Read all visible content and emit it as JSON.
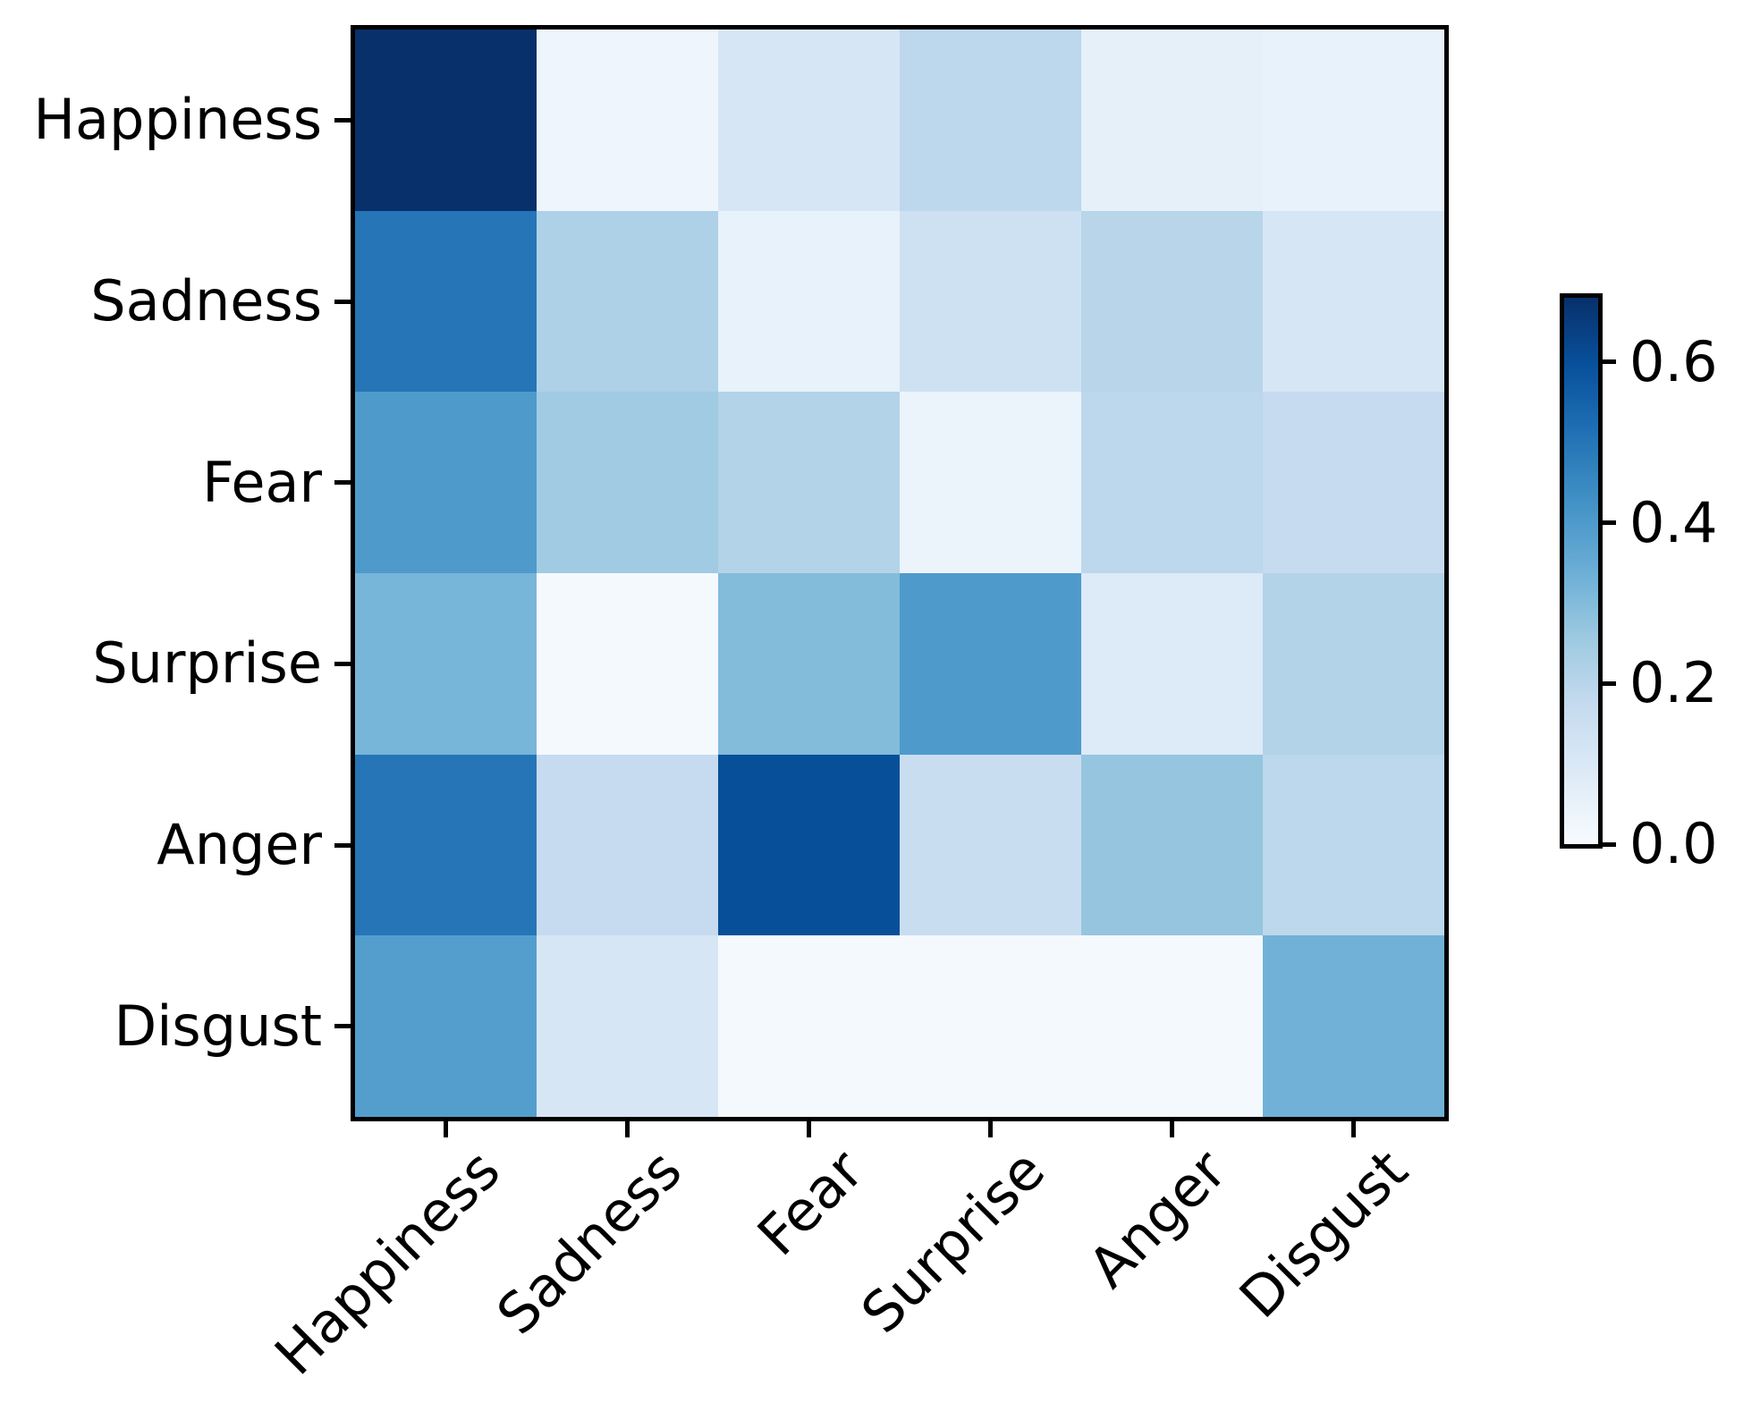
{
  "chart_data": {
    "type": "heatmap",
    "title": "",
    "xlabel": "",
    "ylabel": "",
    "rows": [
      "Happiness",
      "Sadness",
      "Fear",
      "Surprise",
      "Anger",
      "Disgust"
    ],
    "columns": [
      "Happiness",
      "Sadness",
      "Fear",
      "Surprise",
      "Anger",
      "Disgust"
    ],
    "values": [
      [
        0.68,
        0.03,
        0.11,
        0.19,
        0.06,
        0.05
      ],
      [
        0.5,
        0.22,
        0.05,
        0.14,
        0.2,
        0.11
      ],
      [
        0.4,
        0.25,
        0.21,
        0.04,
        0.19,
        0.17
      ],
      [
        0.32,
        0.01,
        0.3,
        0.4,
        0.09,
        0.21
      ],
      [
        0.5,
        0.17,
        0.6,
        0.16,
        0.27,
        0.19
      ],
      [
        0.39,
        0.11,
        0.01,
        0.01,
        0.01,
        0.33
      ]
    ],
    "vmin": 0.0,
    "vmax": 0.68,
    "x_tick_rotation_deg": 45,
    "grid_lines": "off",
    "legend": "none",
    "colormap": {
      "name": "Blues",
      "anchors": [
        {
          "t": 0.0,
          "color": "#f7fbff"
        },
        {
          "t": 0.125,
          "color": "#deebf7"
        },
        {
          "t": 0.25,
          "color": "#c6dbef"
        },
        {
          "t": 0.375,
          "color": "#9ecae1"
        },
        {
          "t": 0.5,
          "color": "#6baed6"
        },
        {
          "t": 0.625,
          "color": "#4292c6"
        },
        {
          "t": 0.75,
          "color": "#2171b5"
        },
        {
          "t": 0.875,
          "color": "#08519c"
        },
        {
          "t": 1.0,
          "color": "#08306b"
        }
      ]
    },
    "colorbar": {
      "position": "right",
      "ticks": [
        {
          "label": "0.6",
          "value": 0.6
        },
        {
          "label": "0.4",
          "value": 0.4
        },
        {
          "label": "0.2",
          "value": 0.2
        },
        {
          "label": "0.0",
          "value": 0.0
        }
      ]
    },
    "axis_color": "#000000",
    "text_color": "#000000",
    "background_color": "#ffffff"
  }
}
